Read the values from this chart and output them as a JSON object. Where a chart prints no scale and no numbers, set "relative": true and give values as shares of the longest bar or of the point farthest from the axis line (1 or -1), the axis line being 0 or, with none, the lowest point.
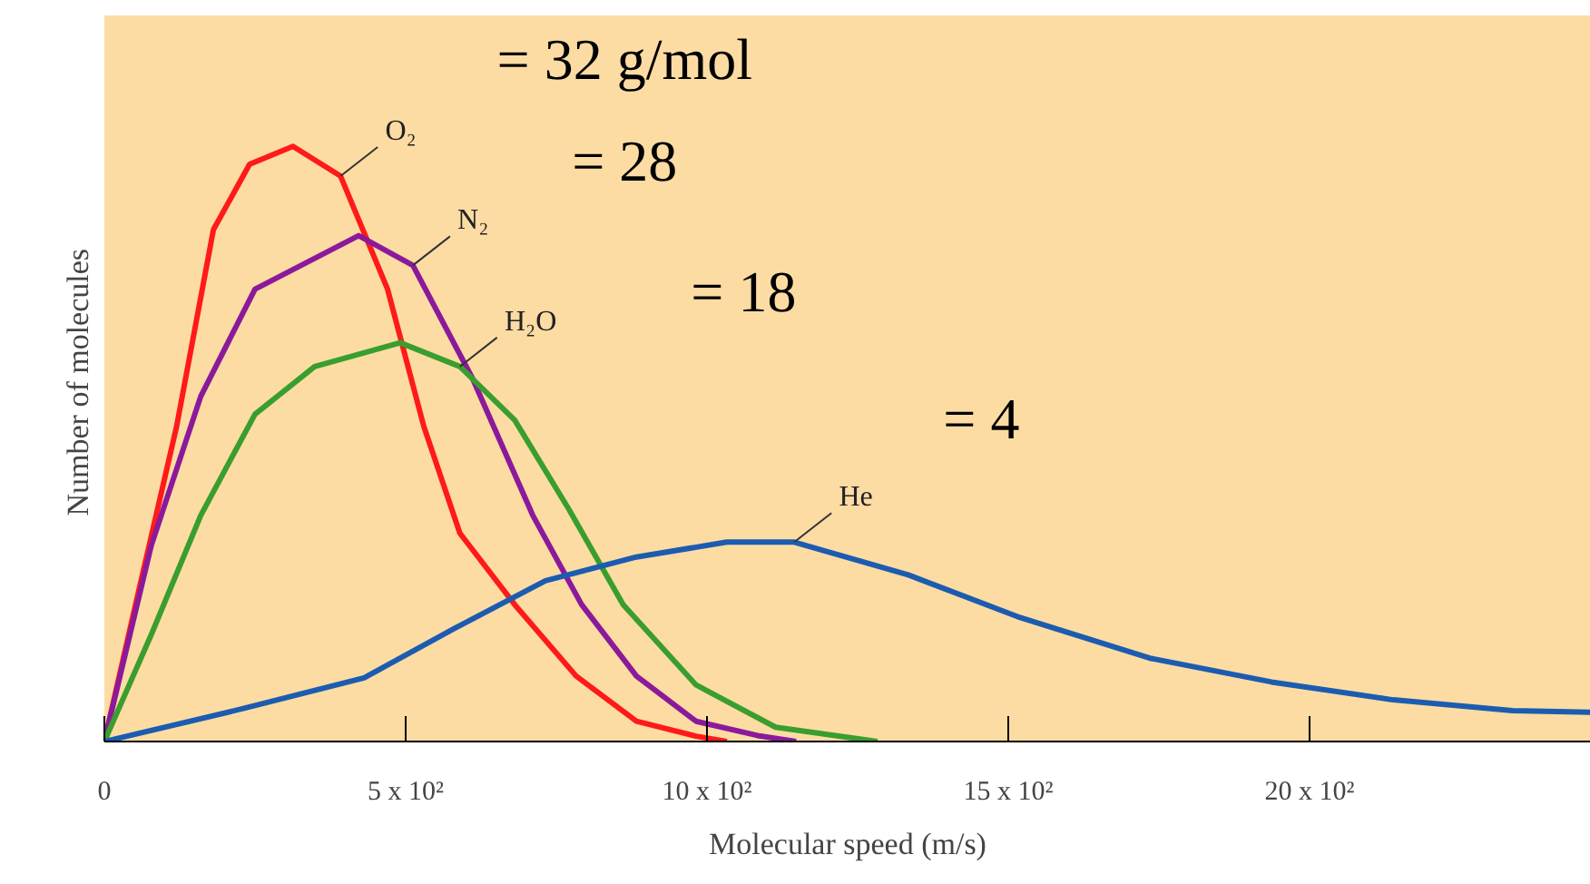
{
  "chart_data": {
    "type": "line",
    "relative": true,
    "xlabel": "Molecular speed (m/s)",
    "ylabel": "Number of  molecules",
    "xlim": [
      0,
      2467
    ],
    "xticks": [
      0,
      {
        "value": 500,
        "label": "5 x 10²"
      },
      {
        "value": 1000,
        "label": "10 x 10²"
      },
      {
        "value": 1500,
        "label": "15 x 10²"
      },
      {
        "value": 2000,
        "label": "20 x 10²"
      }
    ],
    "grid": false,
    "legend": false,
    "marker": "none",
    "line_style": "solid",
    "annotations": [
      "= 32 g/mol",
      "= 28",
      "= 18",
      "= 4"
    ],
    "series": [
      {
        "name": "O₂",
        "color": "#ff1a1a",
        "x": [
          0,
          54,
          120,
          181,
          241,
          313,
          392,
          470,
          530,
          590,
          681,
          783,
          883,
          982,
          1033
        ],
        "values": [
          0,
          0.24,
          0.53,
          0.86,
          0.97,
          1.0,
          0.95,
          0.76,
          0.53,
          0.35,
          0.23,
          0.11,
          0.034,
          0.009,
          0
        ]
      },
      {
        "name": "N₂",
        "color": "#8b1a9b",
        "x": [
          0,
          78,
          160,
          250,
          422,
          512,
          611,
          711,
          792,
          883,
          982,
          1084,
          1148
        ],
        "values": [
          0,
          0.33,
          0.58,
          0.76,
          0.85,
          0.8,
          0.61,
          0.38,
          0.23,
          0.11,
          0.034,
          0.01,
          0
        ]
      },
      {
        "name": "H₂O",
        "color": "#3a9e2e",
        "x": [
          0,
          78,
          160,
          250,
          349,
          491,
          590,
          681,
          771,
          861,
          982,
          1114,
          1283
        ],
        "values": [
          0,
          0.18,
          0.38,
          0.55,
          0.63,
          0.67,
          0.63,
          0.54,
          0.39,
          0.23,
          0.095,
          0.024,
          0
        ]
      },
      {
        "name": "He",
        "color": "#1c5cb0",
        "x": [
          0,
          229,
          431,
          581,
          732,
          883,
          1033,
          1145,
          1334,
          1515,
          1735,
          1937,
          2139,
          2337,
          2467
        ],
        "values": [
          0,
          0.055,
          0.107,
          0.19,
          0.27,
          0.31,
          0.335,
          0.335,
          0.28,
          0.21,
          0.14,
          0.1,
          0.07,
          0.052,
          0.049
        ]
      }
    ]
  }
}
